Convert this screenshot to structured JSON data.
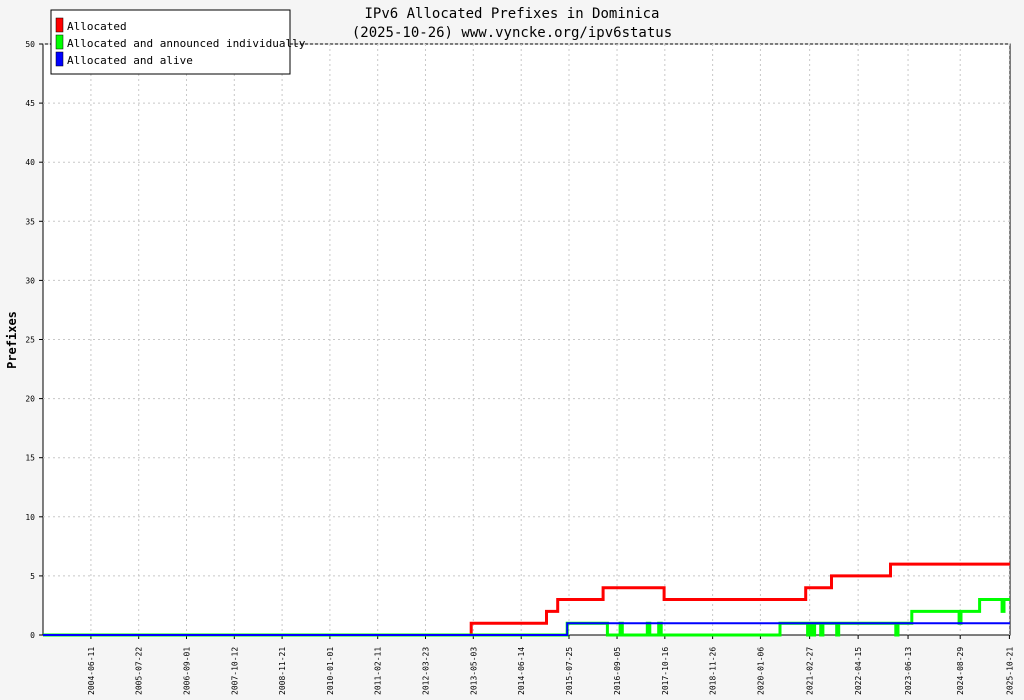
{
  "chart_data": {
    "type": "line",
    "title": "IPv6 Allocated Prefixes in Dominica",
    "subtitle": "(2025-10-26) www.vyncke.org/ipv6status",
    "ylabel": "Prefixes",
    "xlabel": "",
    "ylim": [
      0,
      50
    ],
    "yticks": [
      "0",
      "5",
      "10",
      "15",
      "20",
      "25",
      "30",
      "35",
      "40",
      "45",
      "50"
    ],
    "x_tick_labels": [
      "2004-06-11",
      "2005-07-22",
      "2006-09-01",
      "2007-10-12",
      "2008-11-21",
      "2010-01-01",
      "2011-02-11",
      "2012-03-23",
      "2013-05-03",
      "2014-06-14",
      "2015-07-25",
      "2016-09-05",
      "2017-10-16",
      "2018-11-26",
      "2020-01-06",
      "2021-02-27",
      "2022-04-15",
      "2023-06-13",
      "2024-08-29",
      "2025-10-21"
    ],
    "x_range": [
      "2003-05-01",
      "2025-10-26"
    ],
    "grid": true,
    "legend_position": "top-left",
    "series": [
      {
        "name": "Allocated",
        "color": "#ff0000",
        "points": [
          [
            "2003-05-01",
            0
          ],
          [
            "2013-04-15",
            0
          ],
          [
            "2013-04-15",
            1
          ],
          [
            "2015-01-15",
            1
          ],
          [
            "2015-01-15",
            2
          ],
          [
            "2015-04-20",
            2
          ],
          [
            "2015-04-20",
            3
          ],
          [
            "2016-05-10",
            3
          ],
          [
            "2016-05-10",
            4
          ],
          [
            "2017-10-10",
            4
          ],
          [
            "2017-10-10",
            3
          ],
          [
            "2021-01-25",
            3
          ],
          [
            "2021-01-25",
            4
          ],
          [
            "2021-09-01",
            4
          ],
          [
            "2021-09-01",
            5
          ],
          [
            "2023-01-15",
            5
          ],
          [
            "2023-01-15",
            6
          ],
          [
            "2025-10-26",
            6
          ]
        ]
      },
      {
        "name": "Allocated and announced individually",
        "color": "#00ff00",
        "points": [
          [
            "2003-05-01",
            0
          ],
          [
            "2015-07-10",
            0
          ],
          [
            "2015-07-10",
            1
          ],
          [
            "2016-06-15",
            1
          ],
          [
            "2016-06-15",
            0
          ],
          [
            "2016-10-01",
            0
          ],
          [
            "2016-10-01",
            1
          ],
          [
            "2016-10-20",
            1
          ],
          [
            "2016-10-20",
            0
          ],
          [
            "2017-05-20",
            0
          ],
          [
            "2017-05-20",
            1
          ],
          [
            "2017-06-10",
            1
          ],
          [
            "2017-06-10",
            0
          ],
          [
            "2017-08-25",
            0
          ],
          [
            "2017-08-25",
            1
          ],
          [
            "2017-09-15",
            1
          ],
          [
            "2017-09-15",
            0
          ],
          [
            "2020-06-20",
            0
          ],
          [
            "2020-06-20",
            1
          ],
          [
            "2021-02-10",
            1
          ],
          [
            "2021-02-10",
            0
          ],
          [
            "2021-03-01",
            0
          ],
          [
            "2021-03-01",
            1
          ],
          [
            "2021-03-20",
            1
          ],
          [
            "2021-03-20",
            0
          ],
          [
            "2021-04-10",
            0
          ],
          [
            "2021-04-10",
            1
          ],
          [
            "2021-06-01",
            1
          ],
          [
            "2021-06-01",
            0
          ],
          [
            "2021-06-20",
            0
          ],
          [
            "2021-06-20",
            1
          ],
          [
            "2021-10-15",
            1
          ],
          [
            "2021-10-15",
            0
          ],
          [
            "2021-11-01",
            0
          ],
          [
            "2021-11-01",
            1
          ],
          [
            "2023-03-01",
            1
          ],
          [
            "2023-03-01",
            0
          ],
          [
            "2023-03-20",
            0
          ],
          [
            "2023-03-20",
            1
          ],
          [
            "2023-07-15",
            1
          ],
          [
            "2023-07-15",
            2
          ],
          [
            "2024-08-20",
            2
          ],
          [
            "2024-08-20",
            1
          ],
          [
            "2024-09-05",
            1
          ],
          [
            "2024-09-05",
            2
          ],
          [
            "2025-02-10",
            2
          ],
          [
            "2025-02-10",
            3
          ],
          [
            "2025-08-20",
            3
          ],
          [
            "2025-08-20",
            2
          ],
          [
            "2025-09-05",
            2
          ],
          [
            "2025-09-05",
            3
          ],
          [
            "2025-10-26",
            3
          ]
        ]
      },
      {
        "name": "Allocated and alive",
        "color": "#0000ff",
        "points": [
          [
            "2003-05-01",
            0
          ],
          [
            "2015-07-10",
            0
          ],
          [
            "2015-07-10",
            1
          ],
          [
            "2025-10-26",
            1
          ]
        ]
      }
    ]
  }
}
